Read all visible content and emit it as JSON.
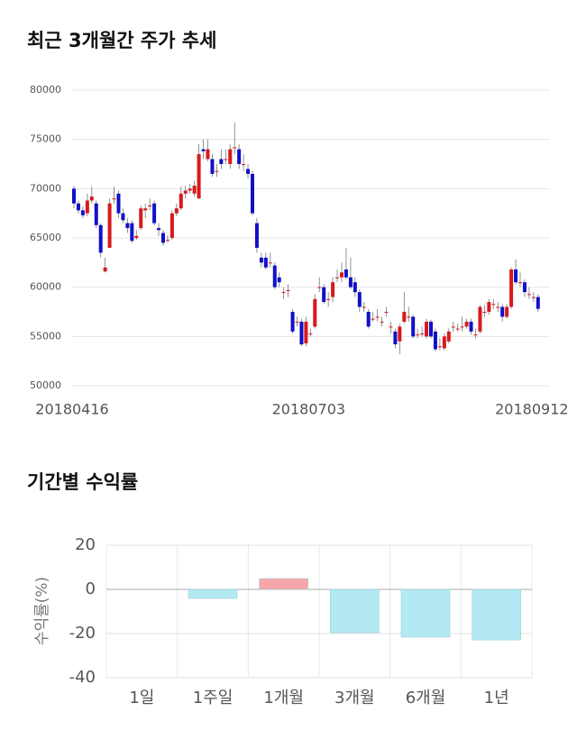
{
  "chart_data": [
    {
      "type": "candlestick",
      "title": "최근 3개월간 주가 추세",
      "categories": [
        "20180416",
        null,
        null,
        null,
        null,
        null,
        null,
        null,
        null,
        null,
        null,
        null,
        null,
        null,
        null,
        null,
        null,
        null,
        null,
        null,
        null,
        null,
        null,
        null,
        null,
        null,
        null,
        null,
        null,
        null,
        null,
        null,
        null,
        null,
        null,
        null,
        null,
        null,
        null,
        null,
        null,
        null,
        null,
        null,
        null,
        null,
        null,
        null,
        null,
        null,
        null,
        null,
        null,
        "20180703",
        null,
        null,
        null,
        null,
        null,
        null,
        null,
        null,
        null,
        null,
        null,
        null,
        null,
        null,
        null,
        null,
        null,
        null,
        null,
        null,
        null,
        null,
        null,
        null,
        null,
        null,
        null,
        null,
        null,
        null,
        null,
        null,
        null,
        null,
        null,
        null,
        null,
        null,
        null,
        null,
        null,
        null,
        null,
        null,
        null,
        null,
        null,
        null,
        null,
        "20180912",
        null
      ],
      "open": [
        70000,
        68500,
        67800,
        67500,
        68800,
        68500,
        66300,
        61600,
        64000,
        69000,
        69500,
        67500,
        66500,
        66500,
        65000,
        66000,
        67800,
        68200,
        68500,
        66000,
        65500,
        64800,
        65000,
        67500,
        68000,
        69500,
        69800,
        69500,
        69000,
        74000,
        73000,
        73000,
        71800,
        73000,
        73000,
        72500,
        74200,
        74000,
        72500,
        72000,
        71500,
        66500,
        63000,
        63000,
        62500,
        62200,
        61000,
        59500,
        59700,
        57500,
        56500,
        56500,
        54300,
        55300,
        56000,
        60000,
        60000,
        58800,
        59000,
        61000,
        61000,
        61800,
        61000,
        60500,
        59500,
        58000,
        57500,
        56800,
        57000,
        56500,
        57500,
        56000,
        55500,
        54500,
        56500,
        57000,
        57000,
        55200,
        55300,
        55000,
        56500,
        55500,
        54000,
        53800,
        54500,
        56000,
        55800,
        56000,
        56000,
        56500,
        55200,
        55500,
        57500,
        57500,
        58300,
        58000,
        58000,
        57000,
        58000,
        61800,
        60500,
        60500,
        59300,
        59000,
        59000
      ],
      "high": [
        70300,
        68800,
        68200,
        69500,
        70200,
        68800,
        66500,
        63000,
        69000,
        70200,
        69800,
        68000,
        67000,
        66800,
        65800,
        68300,
        68500,
        69000,
        68800,
        66500,
        65800,
        65300,
        67800,
        68500,
        70200,
        70300,
        70500,
        70800,
        74500,
        75000,
        75000,
        73500,
        72500,
        74000,
        74000,
        74500,
        76700,
        74500,
        73500,
        72500,
        71800,
        67000,
        63500,
        63500,
        63500,
        62500,
        61500,
        60000,
        60300,
        57800,
        57000,
        56800,
        57000,
        55800,
        59300,
        61000,
        60300,
        59500,
        61000,
        61800,
        62500,
        64000,
        63000,
        61000,
        59800,
        58500,
        57800,
        57500,
        57800,
        57000,
        58000,
        56500,
        55800,
        56300,
        59500,
        58000,
        57200,
        55800,
        56000,
        56800,
        56700,
        55800,
        54800,
        55300,
        55800,
        56500,
        56300,
        57000,
        56800,
        56800,
        55800,
        58200,
        58200,
        58800,
        58800,
        58500,
        58300,
        58300,
        62000,
        62800,
        61500,
        60800,
        60000,
        59500,
        59300
      ],
      "low": [
        68000,
        67500,
        67000,
        67200,
        68500,
        66000,
        63000,
        61500,
        64000,
        68500,
        67000,
        66500,
        65500,
        64500,
        64800,
        65800,
        67000,
        67800,
        66300,
        65200,
        64200,
        64500,
        64800,
        67200,
        67800,
        69000,
        69500,
        69200,
        69000,
        73000,
        72800,
        71200,
        71200,
        72000,
        72500,
        72000,
        73500,
        72000,
        71800,
        71000,
        67300,
        63500,
        62000,
        61800,
        62000,
        59800,
        60000,
        58800,
        59000,
        55300,
        56000,
        54000,
        54000,
        55000,
        55800,
        59500,
        58300,
        58000,
        58500,
        60500,
        60500,
        60800,
        59800,
        59000,
        57500,
        57500,
        55800,
        56500,
        56500,
        56000,
        57000,
        55300,
        53800,
        53200,
        56300,
        56500,
        54800,
        54800,
        55000,
        54800,
        54800,
        53500,
        53600,
        53600,
        54300,
        55500,
        55500,
        55500,
        55800,
        55200,
        54800,
        55300,
        57000,
        57200,
        57800,
        57500,
        56500,
        56800,
        57800,
        60300,
        60000,
        59000,
        58800,
        58500,
        57500
      ],
      "close": [
        68500,
        67800,
        67300,
        68800,
        69200,
        66300,
        63500,
        62000,
        68500,
        69000,
        67500,
        66800,
        66000,
        64700,
        65200,
        68000,
        68000,
        68300,
        66500,
        65800,
        64500,
        64800,
        67500,
        68000,
        69500,
        69800,
        70000,
        70300,
        73500,
        73800,
        74000,
        71500,
        71800,
        72500,
        73000,
        74000,
        74200,
        72500,
        72500,
        71500,
        67500,
        64000,
        62500,
        62000,
        62500,
        60000,
        60500,
        59500,
        59700,
        55500,
        56500,
        54200,
        56500,
        55300,
        58800,
        60000,
        58500,
        58800,
        60500,
        61000,
        61500,
        61000,
        60000,
        59500,
        58000,
        58000,
        56000,
        56800,
        57000,
        56500,
        57500,
        56000,
        54200,
        56000,
        57500,
        57000,
        55000,
        55200,
        55300,
        56500,
        55000,
        53700,
        54000,
        55000,
        55500,
        56000,
        55800,
        56000,
        56500,
        55500,
        55200,
        58000,
        57500,
        58500,
        58300,
        58000,
        57000,
        58000,
        61800,
        60500,
        60500,
        59500,
        59300,
        59000,
        57800
      ],
      "up_color": "#d7191c",
      "down_color": "#1010c8",
      "ylim": [
        50000,
        80000
      ],
      "yticks": [
        50000,
        55000,
        60000,
        65000,
        70000,
        75000,
        80000
      ],
      "grid": true
    },
    {
      "type": "bar",
      "title": "기간별 수익률",
      "ylabel": "수익률(%)",
      "categories": [
        "1일",
        "1주일",
        "1개월",
        "3개월",
        "6개월",
        "1년"
      ],
      "values": [
        0,
        -4.1,
        4.9,
        -19.6,
        -21.6,
        -22.9
      ],
      "colors": [
        "#b3e9f2",
        "#b3e9f2",
        "#f7a6a9",
        "#b3e9f2",
        "#b3e9f2",
        "#b3e9f2"
      ],
      "ylim": [
        -40,
        20
      ],
      "yticks": [
        -40,
        -20,
        0,
        20
      ],
      "grid": true
    }
  ]
}
